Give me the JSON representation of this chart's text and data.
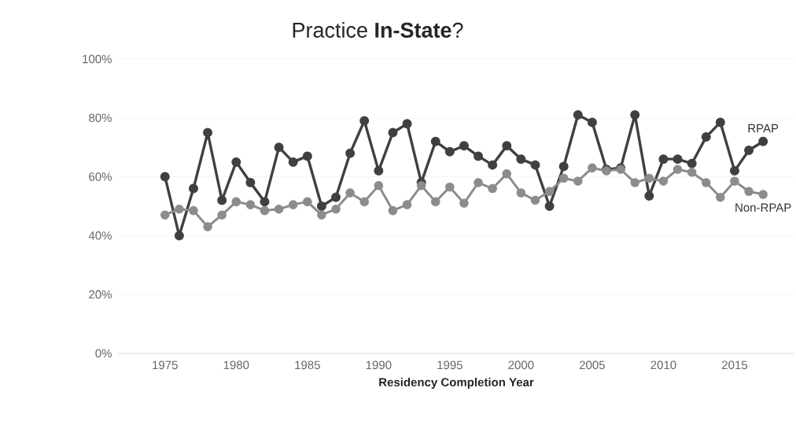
{
  "chart_data": {
    "type": "line",
    "title": "Practice **In-State**?",
    "xlabel": "Residency Completion Year",
    "x": [
      1975,
      1976,
      1977,
      1978,
      1979,
      1980,
      1981,
      1982,
      1983,
      1984,
      1985,
      1986,
      1987,
      1988,
      1989,
      1990,
      1991,
      1992,
      1993,
      1994,
      1995,
      1996,
      1997,
      1998,
      1999,
      2000,
      2001,
      2002,
      2003,
      2004,
      2005,
      2006,
      2007,
      2008,
      2009,
      2010,
      2011,
      2012,
      2013,
      2014,
      2015,
      2016,
      2017
    ],
    "series": [
      {
        "name": "RPAP",
        "color": "#404040",
        "values": [
          60,
          40,
          56,
          75,
          52,
          65,
          58,
          51.5,
          70,
          65,
          67,
          50,
          53,
          68,
          79,
          62,
          75,
          78,
          58,
          72,
          68.5,
          70.5,
          67,
          64,
          70.5,
          66,
          64,
          50,
          63.5,
          81,
          78.5,
          62.5,
          63,
          81,
          53.5,
          66,
          66,
          64.5,
          73.5,
          78.5,
          62,
          69,
          72
        ]
      },
      {
        "name": "Non-RPAP",
        "color": "#8c8c8c",
        "values": [
          47,
          49,
          48.5,
          43,
          47,
          51.5,
          50.5,
          48.5,
          49,
          50.5,
          51.5,
          47,
          49,
          54.5,
          51.5,
          57,
          48.5,
          50.5,
          57,
          51.5,
          56.5,
          51,
          58,
          56,
          61,
          54.5,
          52,
          55,
          59.5,
          58.5,
          63,
          62,
          62.5,
          58,
          59.5,
          58.5,
          62.5,
          61.5,
          58,
          53,
          58.5,
          55,
          54
        ]
      }
    ],
    "xlim": [
      1971.7,
      2019.2
    ],
    "xticks": [
      1975,
      1980,
      1985,
      1990,
      1995,
      2000,
      2005,
      2010,
      2015
    ],
    "ylim": [
      0,
      100
    ],
    "yticks": [
      {
        "value": 0,
        "label": "0%"
      },
      {
        "value": 20,
        "label": "20%"
      },
      {
        "value": 40,
        "label": "40%"
      },
      {
        "value": 60,
        "label": "60%"
      },
      {
        "value": 80,
        "label": "80%"
      },
      {
        "value": 100,
        "label": "100%"
      }
    ],
    "grid": "y",
    "marker": "circle",
    "line_style": "solid",
    "legend": false
  }
}
